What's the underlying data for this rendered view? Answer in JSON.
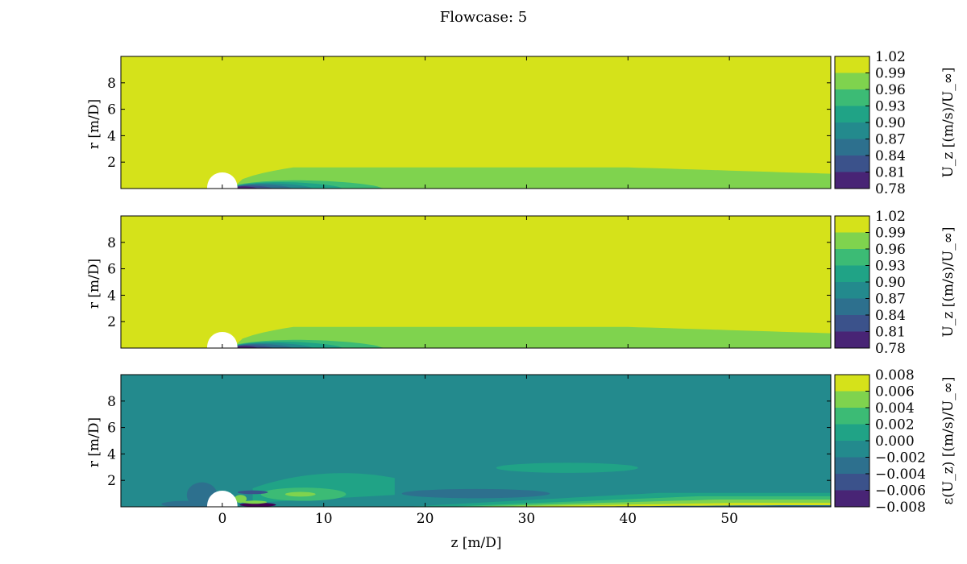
{
  "title": "Flowcase: 5",
  "xlabel": "z [m/D]",
  "x_ticks": [
    "0",
    "10",
    "20",
    "30",
    "40",
    "50"
  ],
  "y_ticks": [
    "2",
    "4",
    "6",
    "8"
  ],
  "chart_data": [
    {
      "type": "heatmap",
      "ylabel": "r [m/D]",
      "xlim": [
        -10,
        60
      ],
      "ylim": [
        0,
        10
      ],
      "colorbar": {
        "label": "U_z [(m/s)/U_∞]",
        "levels": [
          "1.02",
          "0.99",
          "0.96",
          "0.93",
          "0.90",
          "0.87",
          "0.84",
          "0.81",
          "0.78"
        ],
        "colors": [
          "#d5e21a",
          "#7fd34e",
          "#3cbb75",
          "#20a386",
          "#238a8d",
          "#2d708e",
          "#3b528b",
          "#482475",
          "#440154"
        ]
      },
      "background_level": "0.99–1.02",
      "features": [
        {
          "name": "body",
          "x": [
            -1.5,
            1.5
          ],
          "r_max": 1.5
        },
        {
          "name": "wake 0.96–0.99",
          "x_end": 60,
          "r_max": 1.6
        },
        {
          "name": "near wake 0.93–0.96",
          "x_end": 16,
          "r_max": 0.6
        },
        {
          "name": "near wake 0.78–0.87",
          "x_end": 7,
          "r_max": 0.4
        }
      ]
    },
    {
      "type": "heatmap",
      "ylabel": "r [m/D]",
      "xlim": [
        -10,
        60
      ],
      "ylim": [
        0,
        10
      ],
      "colorbar": {
        "label": "U_z [(m/s)/U_∞]",
        "levels": [
          "1.02",
          "0.99",
          "0.96",
          "0.93",
          "0.90",
          "0.87",
          "0.84",
          "0.81",
          "0.78"
        ],
        "colors": [
          "#d5e21a",
          "#7fd34e",
          "#3cbb75",
          "#20a386",
          "#238a8d",
          "#2d708e",
          "#3b528b",
          "#482475",
          "#440154"
        ]
      },
      "background_level": "0.99–1.02",
      "features": [
        {
          "name": "body",
          "x": [
            -1.5,
            1.5
          ],
          "r_max": 1.5
        },
        {
          "name": "wake 0.96–0.99",
          "x_end": 60,
          "r_max": 1.6
        },
        {
          "name": "near wake 0.93–0.96",
          "x_end": 16,
          "r_max": 0.6
        },
        {
          "name": "near wake 0.78–0.87",
          "x_end": 7,
          "r_max": 0.4
        }
      ]
    },
    {
      "type": "heatmap",
      "ylabel": "r [m/D]",
      "xlim": [
        -10,
        60
      ],
      "ylim": [
        0,
        10
      ],
      "colorbar": {
        "label": "ε(U_z) [(m/s)/U_∞]",
        "levels": [
          "0.008",
          "0.006",
          "0.004",
          "0.002",
          "0.000",
          "−0.002",
          "−0.004",
          "−0.006",
          "−0.008"
        ],
        "colors": [
          "#d5e21a",
          "#7fd34e",
          "#3cbb75",
          "#20a386",
          "#238a8d",
          "#2d708e",
          "#3b528b",
          "#482475",
          "#440154"
        ]
      },
      "background_level": "0.000–0.002",
      "features": [
        {
          "name": "body",
          "x": [
            -1.5,
            1.5
          ],
          "r_max": 1.5
        },
        {
          "name": "positive band 0.002–0.004",
          "x": [
            3,
            17
          ],
          "r_max": 2.6
        },
        {
          "name": "positive blob 0.004–0.006",
          "x": [
            4,
            12
          ],
          "r_max": 1.3
        },
        {
          "name": "positive peak 0.006–0.008",
          "x": [
            7,
            9
          ],
          "r_max": 1.0
        },
        {
          "name": "far positive band 0.002–0.004",
          "x": [
            27,
            41
          ],
          "r": [
            2.6,
            3.4
          ]
        },
        {
          "name": "negative band −0.004–−0.002",
          "x": [
            18,
            31
          ],
          "r": [
            0.6,
            1.3
          ]
        },
        {
          "name": "negative spot upstream −0.004–−0.002",
          "x": [
            -3,
            -1
          ],
          "r_max": 1.8
        },
        {
          "name": "axis layers near r=0",
          "x": [
            2,
            60
          ],
          "r_max": 1.0
        }
      ]
    }
  ]
}
